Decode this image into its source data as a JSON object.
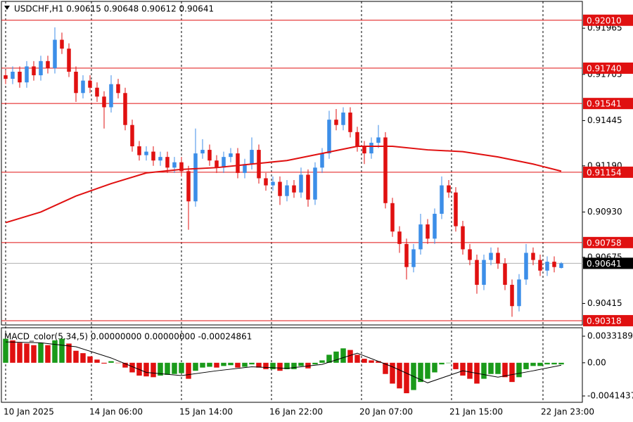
{
  "chart_data": [
    {
      "type": "candlestick",
      "title": "USDCHF,H1  0.90615 0.90648 0.90612 0.90641",
      "up_color": "#3c8ee8",
      "down_color": "#e01010",
      "xlim": [
        -0.5,
        82
      ],
      "xticks": [
        {
          "value": 0,
          "label": "10 Jan 2025"
        },
        {
          "value": 12.2,
          "label": "14 Jan 06:00"
        },
        {
          "value": 25,
          "label": "15 Jan 14:00"
        },
        {
          "value": 37.8,
          "label": "16 Jan 22:00"
        },
        {
          "value": 50.6,
          "label": "20 Jan 07:00"
        },
        {
          "value": 63.4,
          "label": "21 Jan 15:00"
        },
        {
          "value": 76.4,
          "label": "22 Jan 23:00"
        }
      ],
      "ylim": [
        0.90294,
        0.92116
      ],
      "yticks": [
        0.91965,
        0.91705,
        0.91445,
        {
          "value": 0.9119,
          "label": "0.91190"
        },
        {
          "value": 0.9093,
          "label": "0.90930"
        },
        0.90675,
        0.90415
      ],
      "ohlc": [
        [
          0.917,
          0.9173,
          0.9165,
          0.9168
        ],
        [
          0.9168,
          0.9175,
          0.9165,
          0.9172
        ],
        [
          0.9172,
          0.9175,
          0.9163,
          0.9166
        ],
        [
          0.9166,
          0.9178,
          0.9163,
          0.9175
        ],
        [
          0.9175,
          0.9178,
          0.9167,
          0.917
        ],
        [
          0.917,
          0.9181,
          0.9167,
          0.9178
        ],
        [
          0.9178,
          0.9181,
          0.9171,
          0.9174
        ],
        [
          0.9174,
          0.9197,
          0.9171,
          0.919
        ],
        [
          0.919,
          0.9194,
          0.9182,
          0.9185
        ],
        [
          0.9185,
          0.9188,
          0.9169,
          0.9172
        ],
        [
          0.9172,
          0.9175,
          0.9155,
          0.916
        ],
        [
          0.916,
          0.917,
          0.9157,
          0.9167
        ],
        [
          0.9167,
          0.917,
          0.916,
          0.9163
        ],
        [
          0.9163,
          0.9166,
          0.9155,
          0.9158
        ],
        [
          0.9158,
          0.9161,
          0.914,
          0.9152
        ],
        [
          0.9152,
          0.917,
          0.9149,
          0.9165
        ],
        [
          0.9165,
          0.9168,
          0.9157,
          0.916
        ],
        [
          0.916,
          0.9163,
          0.9139,
          0.9142
        ],
        [
          0.9142,
          0.9145,
          0.9127,
          0.913
        ],
        [
          0.913,
          0.9133,
          0.9122,
          0.9125
        ],
        [
          0.9125,
          0.913,
          0.9122,
          0.9127
        ],
        [
          0.9127,
          0.913,
          0.9119,
          0.9122
        ],
        [
          0.9122,
          0.9127,
          0.9119,
          0.9124
        ],
        [
          0.9124,
          0.9127,
          0.9115,
          0.9118
        ],
        [
          0.9118,
          0.9124,
          0.9115,
          0.9121
        ],
        [
          0.9121,
          0.9124,
          0.9113,
          0.9116
        ],
        [
          0.9116,
          0.9119,
          0.9083,
          0.9099
        ],
        [
          0.9099,
          0.914,
          0.9096,
          0.9126
        ],
        [
          0.9126,
          0.9134,
          0.9123,
          0.9128
        ],
        [
          0.9128,
          0.9131,
          0.9119,
          0.9122
        ],
        [
          0.9122,
          0.9125,
          0.9115,
          0.9118
        ],
        [
          0.9118,
          0.9127,
          0.9115,
          0.9124
        ],
        [
          0.9124,
          0.9129,
          0.9121,
          0.9126
        ],
        [
          0.9126,
          0.9129,
          0.9112,
          0.9115
        ],
        [
          0.9115,
          0.9123,
          0.9112,
          0.912
        ],
        [
          0.912,
          0.9135,
          0.9117,
          0.9128
        ],
        [
          0.9128,
          0.9131,
          0.9109,
          0.9112
        ],
        [
          0.9112,
          0.9115,
          0.9105,
          0.9108
        ],
        [
          0.9108,
          0.9113,
          0.9105,
          0.911
        ],
        [
          0.911,
          0.9113,
          0.9097,
          0.9102
        ],
        [
          0.9102,
          0.9111,
          0.9099,
          0.9108
        ],
        [
          0.9108,
          0.9111,
          0.9101,
          0.9104
        ],
        [
          0.9104,
          0.9118,
          0.9101,
          0.9114
        ],
        [
          0.9114,
          0.9117,
          0.9096,
          0.91
        ],
        [
          0.91,
          0.9121,
          0.9097,
          0.9118
        ],
        [
          0.9118,
          0.9129,
          0.9115,
          0.9126
        ],
        [
          0.9126,
          0.915,
          0.9123,
          0.9145
        ],
        [
          0.9145,
          0.9151,
          0.9139,
          0.9142
        ],
        [
          0.9142,
          0.9152,
          0.9139,
          0.9149
        ],
        [
          0.9149,
          0.9152,
          0.9135,
          0.9138
        ],
        [
          0.9138,
          0.9141,
          0.9127,
          0.913
        ],
        [
          0.913,
          0.9133,
          0.912,
          0.9126
        ],
        [
          0.9126,
          0.9135,
          0.9123,
          0.9132
        ],
        [
          0.9132,
          0.9142,
          0.9129,
          0.9135
        ],
        [
          0.9135,
          0.9138,
          0.9095,
          0.9098
        ],
        [
          0.9098,
          0.9101,
          0.9079,
          0.9082
        ],
        [
          0.9082,
          0.9085,
          0.907,
          0.9075
        ],
        [
          0.9075,
          0.9078,
          0.9055,
          0.9062
        ],
        [
          0.9062,
          0.9075,
          0.9059,
          0.9072
        ],
        [
          0.9072,
          0.9092,
          0.9069,
          0.9086
        ],
        [
          0.9086,
          0.9089,
          0.9075,
          0.9078
        ],
        [
          0.9078,
          0.9095,
          0.9075,
          0.9092
        ],
        [
          0.9092,
          0.9113,
          0.9089,
          0.9108
        ],
        [
          0.9108,
          0.9111,
          0.9101,
          0.9104
        ],
        [
          0.9104,
          0.9107,
          0.9082,
          0.9085
        ],
        [
          0.9085,
          0.9088,
          0.9069,
          0.9072
        ],
        [
          0.9072,
          0.9075,
          0.9063,
          0.9066
        ],
        [
          0.9066,
          0.9069,
          0.9047,
          0.9052
        ],
        [
          0.9052,
          0.9069,
          0.9049,
          0.9066
        ],
        [
          0.9066,
          0.9073,
          0.9063,
          0.907
        ],
        [
          0.907,
          0.9073,
          0.9061,
          0.9064
        ],
        [
          0.9064,
          0.9067,
          0.9049,
          0.9052
        ],
        [
          0.9052,
          0.9055,
          0.9034,
          0.904
        ],
        [
          0.904,
          0.9058,
          0.9037,
          0.9055
        ],
        [
          0.9055,
          0.9075,
          0.9052,
          0.907
        ],
        [
          0.907,
          0.9073,
          0.9063,
          0.9066
        ],
        [
          0.9066,
          0.9069,
          0.9057,
          0.906
        ],
        [
          0.906,
          0.9068,
          0.9057,
          0.9065
        ],
        [
          0.9065,
          0.9068,
          0.9059,
          0.9062
        ],
        [
          0.90615,
          0.90648,
          0.90612,
          0.90641
        ]
      ],
      "moving_average": {
        "color": "#e01010",
        "x": [
          0,
          5,
          10,
          15,
          20,
          25,
          30,
          35,
          40,
          45,
          50,
          55,
          60,
          65,
          70,
          75,
          79
        ],
        "values": [
          0.9087,
          0.9093,
          0.9102,
          0.9109,
          0.9115,
          0.9117,
          0.9118,
          0.912,
          0.9122,
          0.9126,
          0.913,
          0.913,
          0.9128,
          0.9127,
          0.9124,
          0.912,
          0.9116
        ]
      },
      "levels": {
        "color": "#e01010",
        "values": [
          {
            "value": 0.9201,
            "label": "0.92010"
          },
          {
            "value": 0.9174,
            "label": "0.91740"
          },
          0.91541,
          0.91154,
          0.90758,
          0.90318
        ]
      },
      "last_price": 0.90641
    },
    {
      "type": "macd",
      "title": "MACD_color(5,34,5) 0.00000000 0.00000000 -0.00024861",
      "up_color": "#1a9a1a",
      "down_color": "#e01010",
      "signal_color": "#000000",
      "xlim": [
        -0.5,
        82
      ],
      "ylim": [
        -0.004934,
        0.004372
      ],
      "yticks": [
        0.0033189,
        {
          "value": 0,
          "label": "0.00"
        },
        -0.0041437
      ],
      "values": [
        0.003,
        0.0028,
        0.0025,
        0.0024,
        0.0022,
        0.0025,
        0.0022,
        0.0028,
        0.003,
        0.0024,
        0.0015,
        0.0012,
        0.0008,
        0.0004,
        -0.0001,
        0.0002,
        0,
        -0.0006,
        -0.0012,
        -0.0016,
        -0.0017,
        -0.0018,
        -0.0016,
        -0.0015,
        -0.0014,
        -0.0013,
        -0.002,
        -0.001,
        -0.0006,
        -0.0005,
        -0.0006,
        -0.0004,
        -0.0003,
        -0.0006,
        -0.0005,
        -0.0002,
        -0.0006,
        -0.0008,
        -0.0008,
        -0.001,
        -0.0008,
        -0.0008,
        -0.0004,
        -0.0007,
        -0.0002,
        0.0003,
        0.001,
        0.0014,
        0.0018,
        0.0016,
        0.001,
        0.0005,
        0.0003,
        0.0002,
        -0.0014,
        -0.0026,
        -0.0032,
        -0.0038,
        -0.0034,
        -0.0024,
        -0.002,
        -0.0012,
        -0.0002,
        0,
        -0.0008,
        -0.0016,
        -0.002,
        -0.0026,
        -0.002,
        -0.0014,
        -0.0014,
        -0.0018,
        -0.0024,
        -0.0018,
        -0.0008,
        -0.0004,
        -0.0004,
        -0.0002,
        -0.0002,
        -0.0002
      ],
      "signal": {
        "x": [
          0,
          5,
          10,
          15,
          20,
          25,
          30,
          35,
          40,
          45,
          50,
          55,
          60,
          65,
          70,
          75,
          79
        ],
        "values": [
          0.0026,
          0.0025,
          0.002,
          0.0006,
          -0.0012,
          -0.0016,
          -0.001,
          -0.0005,
          -0.0007,
          -0.0002,
          0.0012,
          -0.0005,
          -0.0025,
          -0.001,
          -0.0018,
          -0.001,
          -0.0003
        ]
      }
    }
  ]
}
